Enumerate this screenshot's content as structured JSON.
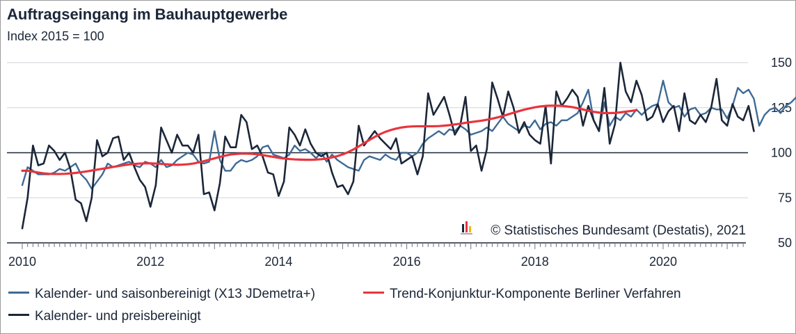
{
  "chart_data": {
    "type": "line",
    "title": "Auftragseingang im Bauhauptgewerbe",
    "subtitle": "Index 2015 = 100",
    "source": "© Statistisches Bundesamt (Destatis), 2021",
    "ylim": [
      50,
      155
    ],
    "yticks": [
      50,
      75,
      100,
      125,
      150
    ],
    "reference_line": 100,
    "xlim": [
      2010,
      2021.25
    ],
    "xticks": [
      2010,
      2012,
      2014,
      2016,
      2018,
      2020
    ],
    "grid": "horizontal",
    "legend_position": "bottom",
    "x_start": "2010-01",
    "x_step": "month",
    "series": [
      {
        "name": "Kalender- und saisonbereinigt (X13 JDemetra+)",
        "color": "#3e6a95",
        "values": [
          82,
          92,
          90,
          88,
          88,
          88,
          89,
          91,
          90,
          92,
          94,
          88,
          85,
          80,
          84,
          88,
          94,
          92,
          93,
          94,
          95,
          93,
          92,
          95,
          94,
          92,
          96,
          92,
          93,
          96,
          98,
          100,
          99,
          95,
          94,
          95,
          112,
          96,
          90,
          90,
          94,
          96,
          95,
          96,
          98,
          103,
          104,
          99,
          98,
          97,
          99,
          104,
          101,
          102,
          100,
          97,
          100,
          95,
          99,
          96,
          94,
          92,
          91,
          90,
          96,
          98,
          97,
          96,
          99,
          97,
          96,
          100,
          100,
          98,
          100,
          105,
          108,
          110,
          112,
          110,
          113,
          112,
          115,
          113,
          110,
          111,
          112,
          114,
          112,
          116,
          120,
          116,
          114,
          112,
          115,
          114,
          118,
          113,
          116,
          117,
          115,
          118,
          118,
          120,
          122,
          128,
          135,
          118,
          112,
          128,
          115,
          120,
          118,
          122,
          120,
          124,
          121,
          124,
          126,
          127,
          140,
          128,
          125,
          126,
          120,
          124,
          125,
          121,
          122,
          125,
          124,
          124,
          119,
          126,
          136,
          133,
          135,
          130,
          115,
          121,
          124,
          125,
          122,
          126,
          128,
          131,
          134
        ]
      },
      {
        "name": "Trend-Konjunktur-Komponente Berliner Verfahren",
        "color": "#e8343c",
        "values": [
          90,
          90,
          89.5,
          89,
          88.6,
          88.3,
          88.2,
          88.2,
          88.3,
          88.5,
          88.8,
          89.2,
          89.6,
          90.1,
          90.6,
          91.1,
          91.6,
          92.1,
          92.6,
          93.1,
          93.5,
          93.8,
          94,
          94.1,
          94.1,
          94,
          93.8,
          93.6,
          93.4,
          93.3,
          93.4,
          93.6,
          94,
          94.6,
          95.3,
          96.1,
          96.9,
          97.7,
          98.4,
          99,
          99.3,
          99.5,
          99.5,
          99.4,
          99.1,
          98.7,
          98.2,
          97.7,
          97.2,
          96.8,
          96.5,
          96.3,
          96.2,
          96.1,
          96.1,
          96.2,
          96.4,
          96.8,
          97.4,
          98.1,
          99.1,
          100.3,
          101.8,
          103.5,
          105.3,
          107.1,
          108.8,
          110.3,
          111.6,
          112.6,
          113.4,
          114,
          114.4,
          114.6,
          114.7,
          114.7,
          114.7,
          114.7,
          114.8,
          115,
          115.3,
          115.7,
          116.1,
          116.6,
          117,
          117.4,
          117.8,
          118.3,
          118.9,
          119.6,
          120.4,
          121.3,
          122.2,
          123.1,
          123.9,
          124.6,
          125.2,
          125.7,
          126,
          126.1,
          126.1,
          126,
          125.7,
          125.3,
          124.7,
          124,
          123.3,
          122.7,
          122.3,
          122,
          122,
          122.1,
          122.4,
          122.8,
          123.2,
          123.6
        ]
      },
      {
        "name": "Kalender- und preisbereinigt",
        "color": "#1b2638",
        "values": [
          58,
          75,
          104,
          93,
          94,
          104,
          101,
          96,
          100,
          91,
          74,
          72,
          62,
          75,
          107,
          98,
          100,
          108,
          109,
          96,
          100,
          92,
          85,
          81,
          70,
          82,
          114,
          107,
          100,
          110,
          104,
          104,
          100,
          110,
          77,
          78,
          68,
          83,
          109,
          103,
          103,
          121,
          117,
          102,
          104,
          98,
          89,
          88,
          76,
          84,
          114,
          110,
          104,
          113,
          105,
          100,
          98,
          100,
          89,
          81,
          82,
          77,
          84,
          115,
          104,
          108,
          112,
          108,
          105,
          102,
          108,
          94,
          96,
          98,
          88,
          98,
          133,
          121,
          126,
          131,
          121,
          110,
          115,
          131,
          101,
          104,
          90,
          102,
          139,
          130,
          120,
          134,
          125,
          111,
          117,
          110,
          107,
          105,
          126,
          94,
          134,
          126,
          130,
          135,
          131,
          115,
          126,
          118,
          112,
          136,
          105,
          116,
          150,
          134,
          128,
          140,
          132,
          118,
          120,
          127,
          117,
          123,
          126,
          112,
          133,
          118,
          116,
          121,
          117,
          125,
          141,
          118,
          115,
          127,
          120,
          118,
          126,
          112
        ]
      }
    ]
  }
}
